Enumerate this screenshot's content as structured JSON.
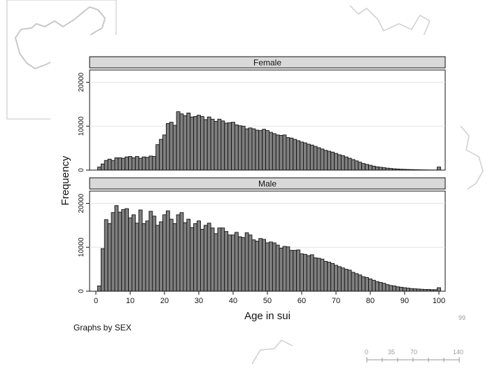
{
  "chart_data": {
    "type": "bar",
    "ylabel": "Frequency",
    "xlabel": "Age in sui",
    "caption": "Graphs by SEX",
    "x_ticks": [
      0,
      10,
      20,
      30,
      40,
      50,
      60,
      70,
      80,
      90,
      100
    ],
    "y_ticks": [
      0,
      10000,
      20000
    ],
    "xlim": [
      0,
      100
    ],
    "ylim": [
      0,
      20000
    ],
    "bar_color": "#808080",
    "x": [
      1,
      2,
      3,
      4,
      5,
      6,
      7,
      8,
      9,
      10,
      11,
      12,
      13,
      14,
      15,
      16,
      17,
      18,
      19,
      20,
      21,
      22,
      23,
      24,
      25,
      26,
      27,
      28,
      29,
      30,
      31,
      32,
      33,
      34,
      35,
      36,
      37,
      38,
      39,
      40,
      41,
      42,
      43,
      44,
      45,
      46,
      47,
      48,
      49,
      50,
      51,
      52,
      53,
      54,
      55,
      56,
      57,
      58,
      59,
      60,
      61,
      62,
      63,
      64,
      65,
      66,
      67,
      68,
      69,
      70,
      71,
      72,
      73,
      74,
      75,
      76,
      77,
      78,
      79,
      80,
      81,
      82,
      83,
      84,
      85,
      86,
      87,
      88,
      89,
      90,
      91,
      92,
      93,
      94,
      95,
      96,
      97,
      98,
      99,
      100
    ],
    "panels": [
      {
        "title": "Female",
        "values": [
          700,
          1400,
          2200,
          2500,
          2200,
          2800,
          2800,
          2700,
          3000,
          3100,
          2800,
          3100,
          2700,
          3000,
          2900,
          3200,
          3100,
          5800,
          7000,
          8000,
          10600,
          10900,
          10200,
          13300,
          12800,
          12400,
          13000,
          12100,
          12200,
          12500,
          12200,
          11500,
          12100,
          11600,
          11100,
          11600,
          11200,
          10700,
          10800,
          10900,
          10300,
          10100,
          10000,
          9400,
          9600,
          9400,
          9100,
          9000,
          9300,
          9000,
          8600,
          8300,
          8000,
          7900,
          8000,
          7400,
          7300,
          7000,
          6700,
          6400,
          6200,
          5900,
          5700,
          5400,
          5100,
          4800,
          4500,
          4300,
          4100,
          3800,
          3500,
          3300,
          3000,
          2700,
          2400,
          2100,
          1800,
          1500,
          1300,
          1100,
          900,
          750,
          650,
          550,
          450,
          380,
          300,
          250,
          200,
          170,
          140,
          120,
          100,
          80,
          60,
          50,
          40,
          30,
          30,
          700
        ]
      },
      {
        "title": "Male",
        "values": [
          1200,
          9700,
          16300,
          15400,
          17900,
          19500,
          18000,
          18600,
          18800,
          16700,
          17400,
          15500,
          18500,
          15400,
          16000,
          18200,
          17100,
          15000,
          15800,
          17400,
          18300,
          16400,
          15400,
          17400,
          17900,
          15600,
          16400,
          14500,
          15400,
          16000,
          14100,
          15000,
          15500,
          14400,
          13100,
          14400,
          14400,
          13600,
          12800,
          12800,
          13400,
          12400,
          12200,
          13300,
          12800,
          11700,
          11400,
          12000,
          11800,
          11000,
          11200,
          11000,
          10500,
          9800,
          10200,
          10100,
          9300,
          9300,
          9400,
          8500,
          8400,
          8100,
          8300,
          7600,
          7500,
          7300,
          6800,
          6600,
          6300,
          5900,
          5600,
          5300,
          5000,
          4800,
          4300,
          4000,
          3700,
          3300,
          3100,
          2800,
          2500,
          2200,
          2000,
          1800,
          1500,
          1300,
          1200,
          1000,
          900,
          800,
          700,
          600,
          550,
          500,
          450,
          400,
          400,
          350,
          350,
          800
        ]
      }
    ]
  },
  "decor": {
    "scale_bar_labels": [
      "0",
      "35",
      "70",
      "140"
    ],
    "partial_label": "99"
  }
}
